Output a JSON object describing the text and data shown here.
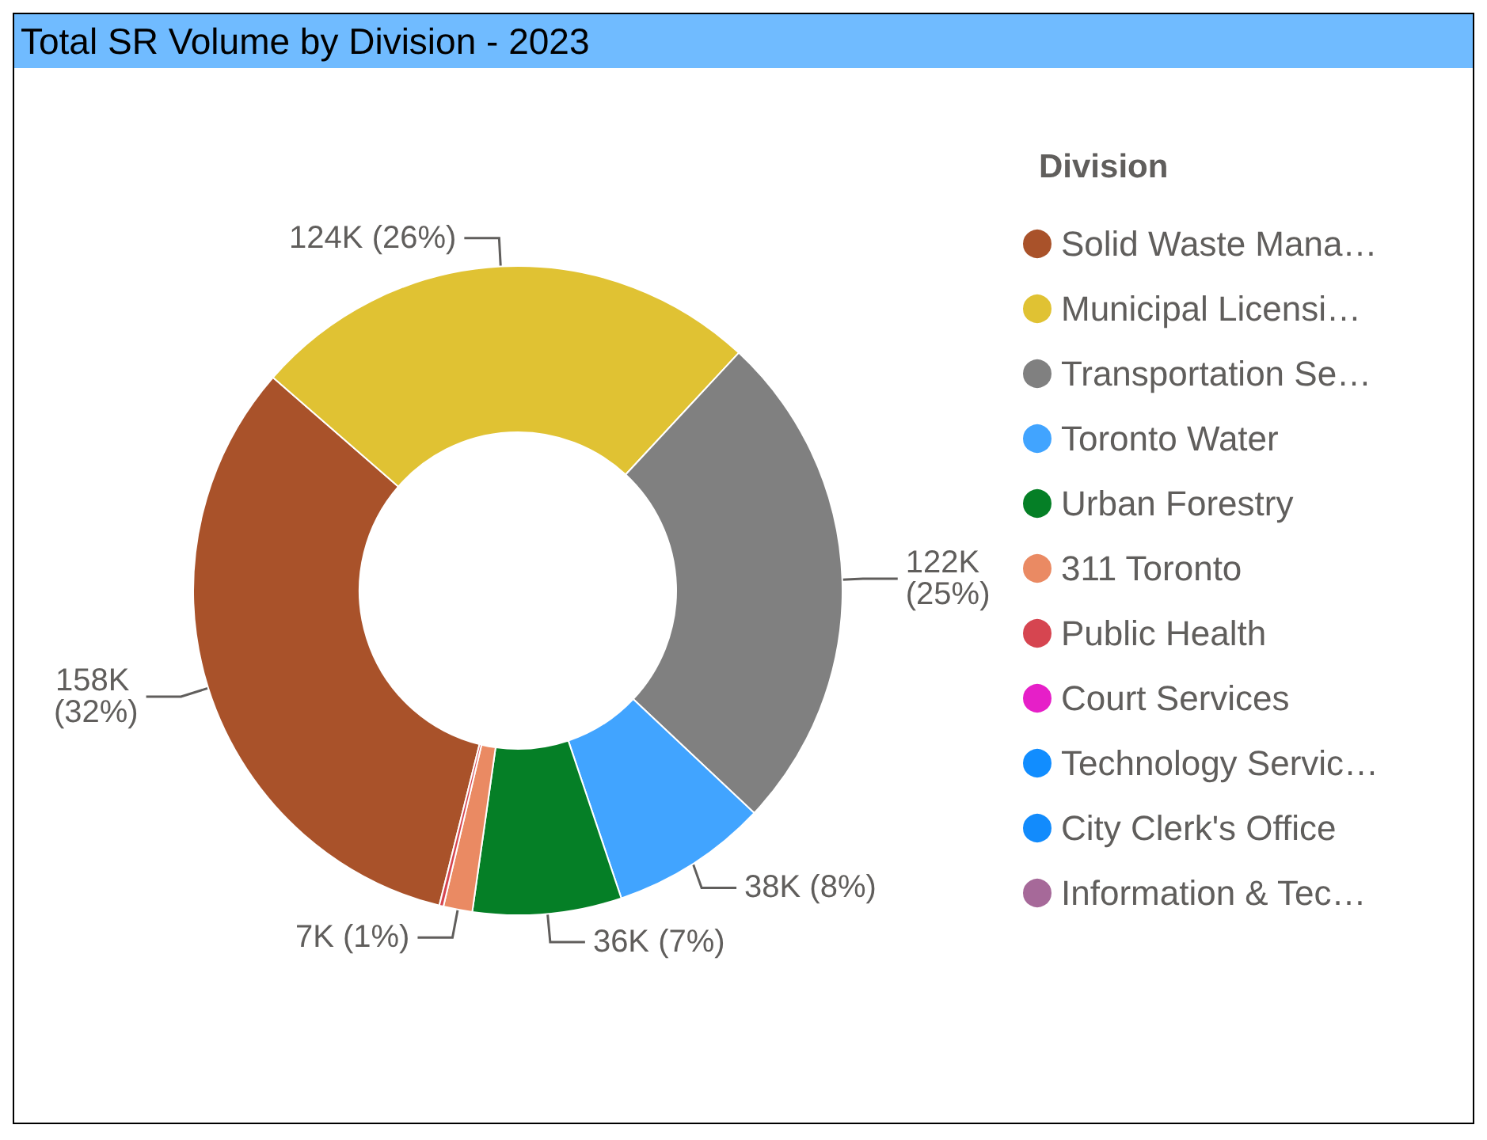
{
  "chart_data": {
    "type": "donut",
    "title": "Total SR Volume by Division - 2023",
    "legend_title": "Division",
    "legend": "right",
    "categories": [
      "Solid Waste Mana…",
      "Municipal Licensi…",
      "Transportation Se…",
      "Toronto Water",
      "Urban Forestry",
      "311 Toronto",
      "Public Health",
      "Court Services",
      "Technology Servic…",
      "City Clerk's Office",
      "Information & Tec…"
    ],
    "values": [
      158000,
      124000,
      122000,
      38000,
      36000,
      7000,
      1000,
      null,
      null,
      null,
      null
    ],
    "colors": [
      "#a9522a",
      "#e0c233",
      "#808080",
      "#41a4ff",
      "#057f26",
      "#ea8a63",
      "#d64550",
      "#e61fc8",
      "#118dff",
      "#128bfc",
      "#a66999"
    ],
    "value_labels": [
      "158K (32%)",
      "124K (26%)",
      "122K (25%)",
      "38K (8%)",
      "36K (7%)",
      "7K (1%)",
      null,
      null,
      null,
      null,
      null
    ]
  }
}
